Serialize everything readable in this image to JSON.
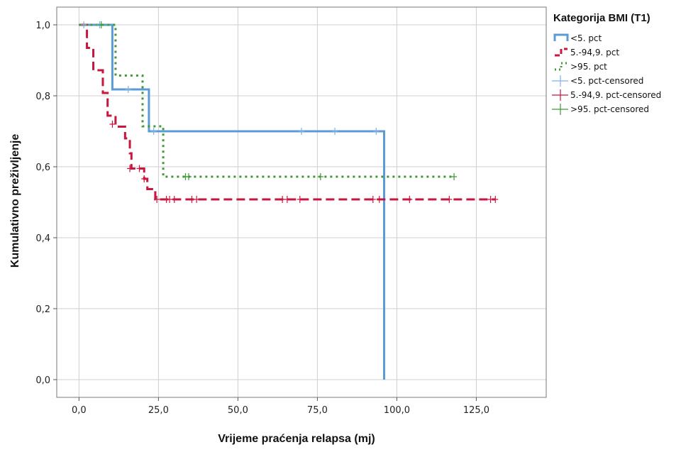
{
  "chart_data": {
    "type": "line",
    "subtype": "kaplan-meier",
    "title": "",
    "xlabel": "Vrijeme praćenja relapsa (mj)",
    "ylabel": "Kumulativno preživljenje",
    "xlim": [
      -7,
      147
    ],
    "ylim": [
      -0.05,
      1.05
    ],
    "x_ticks": [
      {
        "value": 0,
        "label": "0,0"
      },
      {
        "value": 25,
        "label": "25,0"
      },
      {
        "value": 50,
        "label": "50,0"
      },
      {
        "value": 75,
        "label": "75,0"
      },
      {
        "value": 100,
        "label": "100,0"
      },
      {
        "value": 125,
        "label": "125,0"
      }
    ],
    "y_ticks": [
      {
        "value": 0,
        "label": "0,0"
      },
      {
        "value": 0.2,
        "label": "0,2"
      },
      {
        "value": 0.4,
        "label": "0,4"
      },
      {
        "value": 0.6,
        "label": "0,6"
      },
      {
        "value": 0.8,
        "label": "0,8"
      },
      {
        "value": 1.0,
        "label": "1,0"
      }
    ],
    "grid": true,
    "legend": {
      "title": "Kategorija BMI (T1)",
      "position": "right"
    },
    "series": [
      {
        "name": "<5. pct",
        "censored_name": "<5. pct-censored",
        "color": "#5b9bd5",
        "censor_color": "#7fb2e5",
        "dash": "solid",
        "steps": [
          [
            0,
            1.0
          ],
          [
            10.5,
            0.818
          ],
          [
            22.0,
            0.7
          ],
          [
            96.0,
            0.0
          ]
        ],
        "end_x": 96.0,
        "censored": [
          [
            1.5,
            1.0
          ],
          [
            6.5,
            1.0
          ],
          [
            15.5,
            0.818
          ],
          [
            23.5,
            0.7
          ],
          [
            70.0,
            0.7
          ],
          [
            80.5,
            0.7
          ],
          [
            93.5,
            0.7
          ]
        ]
      },
      {
        "name": "5.-94,9. pct",
        "censored_name": "5.-94,9. pct-censored",
        "color": "#c8163f",
        "censor_color": "#c8163f",
        "dash": "dashed",
        "steps": [
          [
            0,
            1.0
          ],
          [
            2.5,
            0.935
          ],
          [
            4.5,
            0.872
          ],
          [
            7.5,
            0.808
          ],
          [
            9.0,
            0.744
          ],
          [
            11.5,
            0.713
          ],
          [
            14.5,
            0.68
          ],
          [
            16.0,
            0.638
          ],
          [
            16.5,
            0.595
          ],
          [
            20.5,
            0.566
          ],
          [
            21.5,
            0.537
          ],
          [
            24.0,
            0.508
          ]
        ],
        "end_x": 131.0,
        "censored": [
          [
            10.5,
            0.72
          ],
          [
            16.0,
            0.595
          ],
          [
            19.0,
            0.595
          ],
          [
            20.5,
            0.566
          ],
          [
            24.5,
            0.508
          ],
          [
            27.5,
            0.508
          ],
          [
            28.5,
            0.508
          ],
          [
            30.0,
            0.508
          ],
          [
            35.5,
            0.508
          ],
          [
            37.0,
            0.508
          ],
          [
            64.0,
            0.508
          ],
          [
            65.5,
            0.508
          ],
          [
            69.5,
            0.508
          ],
          [
            92.5,
            0.508
          ],
          [
            94.5,
            0.508
          ],
          [
            104.0,
            0.508
          ],
          [
            116.5,
            0.508
          ],
          [
            129.5,
            0.508
          ],
          [
            131.0,
            0.508
          ]
        ]
      },
      {
        "name": ">95. pct",
        "censored_name": ">95. pct-censored",
        "color": "#3d9a37",
        "censor_color": "#3d9a37",
        "dash": "dotted",
        "steps": [
          [
            0,
            1.0
          ],
          [
            11.5,
            0.857
          ],
          [
            20.0,
            0.714
          ],
          [
            26.5,
            0.572
          ]
        ],
        "end_x": 118.0,
        "censored": [
          [
            7.0,
            1.0
          ],
          [
            33.5,
            0.572
          ],
          [
            34.5,
            0.572
          ],
          [
            76.0,
            0.572
          ],
          [
            118.0,
            0.572
          ]
        ]
      }
    ]
  }
}
